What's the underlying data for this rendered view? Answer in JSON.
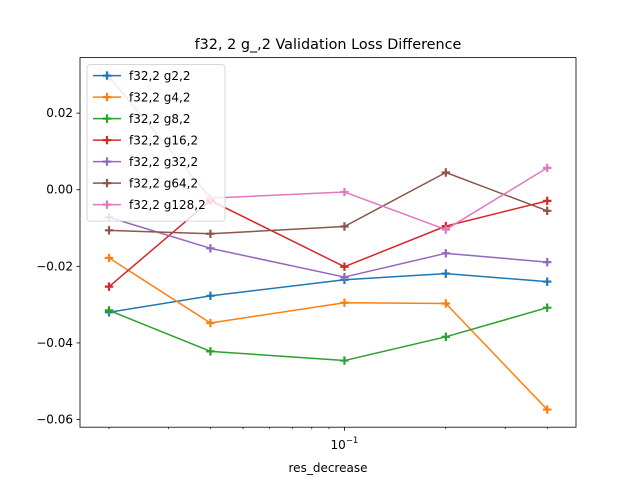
{
  "chart_data": {
    "type": "line",
    "title": "f32, 2 g_,2 Validation Loss Difference",
    "xlabel": "res_decrease",
    "ylabel": "",
    "xscale": "log",
    "x": [
      0.02,
      0.04,
      0.1,
      0.2,
      0.4
    ],
    "xlim": [
      0.0164,
      0.487
    ],
    "ylim": [
      -0.062,
      0.0345
    ],
    "x_major_ticks": [
      {
        "value": 0.1,
        "label": "10^-1",
        "base": "10",
        "exp": "−1"
      }
    ],
    "x_minor_ticks": [
      0.02,
      0.03,
      0.04,
      0.05,
      0.06,
      0.07,
      0.08,
      0.09,
      0.2,
      0.3,
      0.4
    ],
    "y_ticks": [
      {
        "value": 0.02,
        "label": "0.02"
      },
      {
        "value": 0.0,
        "label": "0.00"
      },
      {
        "value": -0.02,
        "label": "−0.02"
      },
      {
        "value": -0.04,
        "label": "−0.04"
      },
      {
        "value": -0.06,
        "label": "−0.06"
      }
    ],
    "grid": false,
    "legend_position": "top-left",
    "marker": "plus",
    "series": [
      {
        "name": "f32,2 g2,2",
        "color": "#1f77b4",
        "values": [
          -0.032,
          -0.0277,
          -0.0235,
          -0.0219,
          -0.024
        ]
      },
      {
        "name": "f32,2 g4,2",
        "color": "#ff7f0e",
        "values": [
          -0.0178,
          -0.0348,
          -0.0295,
          -0.0297,
          -0.0574
        ]
      },
      {
        "name": "f32,2 g8,2",
        "color": "#2ca02c",
        "values": [
          -0.0315,
          -0.0422,
          -0.0446,
          -0.0384,
          -0.0308
        ]
      },
      {
        "name": "f32,2 g16,2",
        "color": "#d62728",
        "values": [
          -0.0253,
          -0.0028,
          -0.0201,
          -0.0095,
          -0.0029
        ]
      },
      {
        "name": "f32,2 g32,2",
        "color": "#9467bd",
        "values": [
          -0.0072,
          -0.0153,
          -0.0228,
          -0.0166,
          -0.0189
        ]
      },
      {
        "name": "f32,2 g64,2",
        "color": "#8c564b",
        "values": [
          -0.0106,
          -0.0115,
          -0.0096,
          0.0045,
          -0.0055
        ]
      },
      {
        "name": "f32,2 g128,2",
        "color": "#e377c2",
        "values": [
          0.0295,
          -0.0022,
          -0.0006,
          -0.0104,
          0.0057
        ]
      }
    ]
  }
}
